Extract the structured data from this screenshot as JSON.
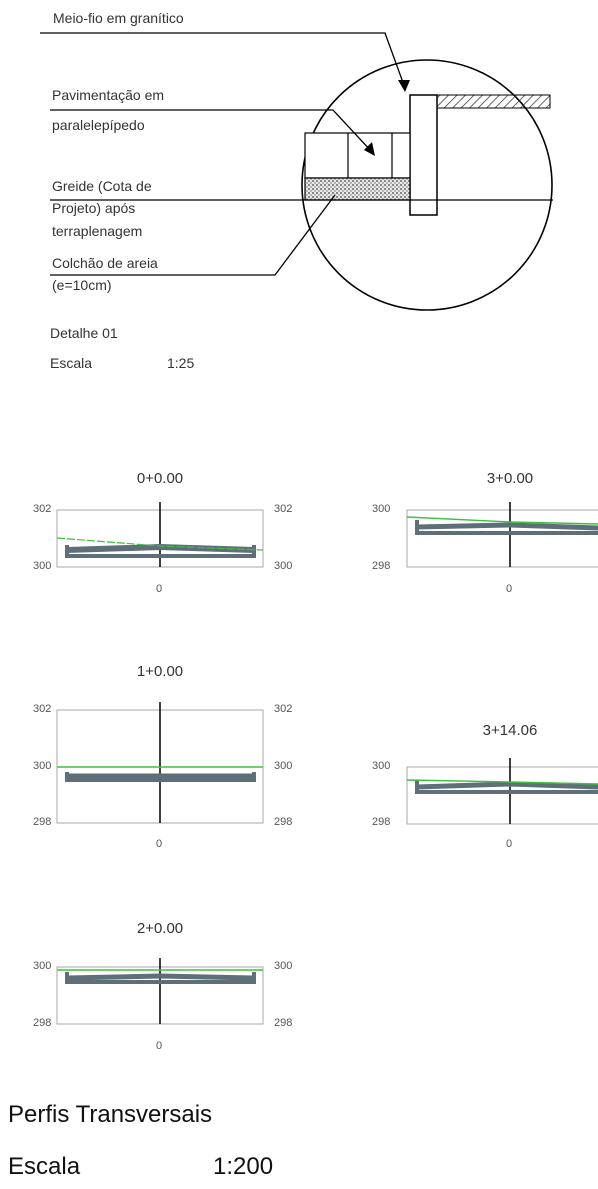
{
  "detail": {
    "labels": {
      "meio_fio": "Meio-fio em granítico",
      "pavimentacao_1": "Pavimentação em",
      "pavimentacao_2": "paralelepípedo",
      "greide_1": "Greide (Cota de",
      "greide_2": "Projeto) após",
      "greide_3": "terraplenagem",
      "colchao_1": "Colchão de areia",
      "colchao_2": "(e=10cm)"
    },
    "title": "Detalhe 01",
    "scale_label": "Escala",
    "scale_value": "1:25"
  },
  "profiles": [
    {
      "station": "0+0.00",
      "y_top": "302",
      "y_bottom": "300",
      "x_center": "0"
    },
    {
      "station": "1+0.00",
      "y_top": "302",
      "y_mid": "300",
      "y_bottom": "298",
      "x_center": "0"
    },
    {
      "station": "2+0.00",
      "y_top": "300",
      "y_bottom": "298",
      "x_center": "0"
    },
    {
      "station": "3+0.00",
      "y_top": "300",
      "y_bottom": "298",
      "x_center": "0"
    },
    {
      "station": "3+14.06",
      "y_top": "300",
      "y_bottom": "298",
      "x_center": "0"
    }
  ],
  "footer": {
    "title": "Perfis Transversais",
    "scale_label": "Escala",
    "scale_value": "1:200"
  },
  "colors": {
    "terrain_line": "#3fbf3f",
    "road_section": "#5f6f7a",
    "frame": "#999999",
    "axis": "#000000"
  }
}
